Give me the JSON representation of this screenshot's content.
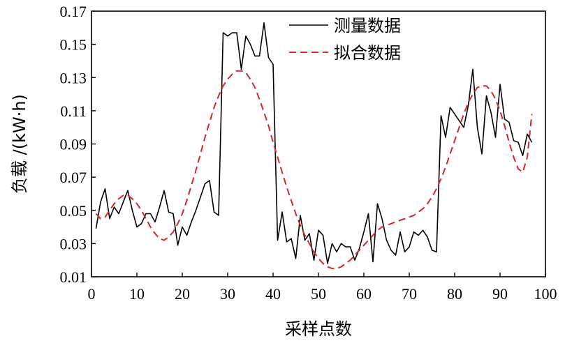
{
  "chart_data": {
    "type": "line",
    "xlabel": "采样点数",
    "ylabel": "负载 /(kW·h)",
    "xlim": [
      0,
      100
    ],
    "ylim": [
      0.01,
      0.17
    ],
    "xticks": [
      "0",
      "10",
      "20",
      "30",
      "40",
      "50",
      "60",
      "70",
      "80",
      "90",
      "100"
    ],
    "yticks": [
      "0.01",
      "0.03",
      "0.05",
      "0.07",
      "0.09",
      "0.11",
      "0.13",
      "0.15",
      "0.17"
    ],
    "grid": false,
    "legend_position": "top-right",
    "series": [
      {
        "name": "测量数据",
        "style": "solid",
        "color": "#000000",
        "points": [
          [
            1,
            0.039
          ],
          [
            2,
            0.055
          ],
          [
            3,
            0.063
          ],
          [
            4,
            0.045
          ],
          [
            5,
            0.052
          ],
          [
            6,
            0.048
          ],
          [
            7,
            0.055
          ],
          [
            8,
            0.062
          ],
          [
            9,
            0.05
          ],
          [
            10,
            0.04
          ],
          [
            11,
            0.042
          ],
          [
            12,
            0.048
          ],
          [
            13,
            0.048
          ],
          [
            14,
            0.043
          ],
          [
            15,
            0.052
          ],
          [
            16,
            0.062
          ],
          [
            17,
            0.049
          ],
          [
            18,
            0.048
          ],
          [
            19,
            0.029
          ],
          [
            20,
            0.04
          ],
          [
            21,
            0.035
          ],
          [
            22,
            0.043
          ],
          [
            23,
            0.05
          ],
          [
            24,
            0.058
          ],
          [
            25,
            0.066
          ],
          [
            26,
            0.068
          ],
          [
            27,
            0.049
          ],
          [
            28,
            0.047
          ],
          [
            29,
            0.157
          ],
          [
            30,
            0.155
          ],
          [
            31,
            0.157
          ],
          [
            32,
            0.157
          ],
          [
            33,
            0.135
          ],
          [
            34,
            0.155
          ],
          [
            35,
            0.15
          ],
          [
            36,
            0.143
          ],
          [
            37,
            0.143
          ],
          [
            38,
            0.163
          ],
          [
            39,
            0.142
          ],
          [
            40,
            0.138
          ],
          [
            41,
            0.032
          ],
          [
            42,
            0.049
          ],
          [
            43,
            0.031
          ],
          [
            44,
            0.033
          ],
          [
            45,
            0.021
          ],
          [
            46,
            0.047
          ],
          [
            47,
            0.032
          ],
          [
            48,
            0.036
          ],
          [
            49,
            0.02
          ],
          [
            50,
            0.038
          ],
          [
            51,
            0.035
          ],
          [
            52,
            0.018
          ],
          [
            53,
            0.03
          ],
          [
            54,
            0.025
          ],
          [
            55,
            0.03
          ],
          [
            56,
            0.028
          ],
          [
            57,
            0.028
          ],
          [
            58,
            0.02
          ],
          [
            59,
            0.027
          ],
          [
            60,
            0.037
          ],
          [
            61,
            0.048
          ],
          [
            62,
            0.019
          ],
          [
            63,
            0.054
          ],
          [
            64,
            0.045
          ],
          [
            65,
            0.032
          ],
          [
            66,
            0.026
          ],
          [
            67,
            0.023
          ],
          [
            68,
            0.037
          ],
          [
            69,
            0.025
          ],
          [
            70,
            0.028
          ],
          [
            71,
            0.037
          ],
          [
            72,
            0.035
          ],
          [
            73,
            0.038
          ],
          [
            74,
            0.034
          ],
          [
            75,
            0.026
          ],
          [
            76,
            0.025
          ],
          [
            77,
            0.107
          ],
          [
            78,
            0.094
          ],
          [
            79,
            0.112
          ],
          [
            80,
            0.108
          ],
          [
            81,
            0.104
          ],
          [
            82,
            0.1
          ],
          [
            83,
            0.113
          ],
          [
            84,
            0.135
          ],
          [
            85,
            0.1
          ],
          [
            86,
            0.084
          ],
          [
            87,
            0.119
          ],
          [
            88,
            0.109
          ],
          [
            89,
            0.094
          ],
          [
            90,
            0.126
          ],
          [
            91,
            0.105
          ],
          [
            92,
            0.103
          ],
          [
            93,
            0.092
          ],
          [
            94,
            0.091
          ],
          [
            95,
            0.083
          ],
          [
            96,
            0.096
          ],
          [
            97,
            0.091
          ]
        ]
      },
      {
        "name": "拟合数据",
        "style": "dashed",
        "color": "#d62728",
        "points": [
          [
            1,
            0.048
          ],
          [
            2,
            0.045
          ],
          [
            3,
            0.046
          ],
          [
            4,
            0.05
          ],
          [
            5,
            0.054
          ],
          [
            6,
            0.057
          ],
          [
            7,
            0.059
          ],
          [
            8,
            0.059
          ],
          [
            9,
            0.057
          ],
          [
            10,
            0.054
          ],
          [
            11,
            0.05
          ],
          [
            12,
            0.045
          ],
          [
            13,
            0.04
          ],
          [
            14,
            0.036
          ],
          [
            15,
            0.033
          ],
          [
            16,
            0.032
          ],
          [
            17,
            0.034
          ],
          [
            18,
            0.037
          ],
          [
            19,
            0.042
          ],
          [
            20,
            0.048
          ],
          [
            21,
            0.056
          ],
          [
            22,
            0.065
          ],
          [
            23,
            0.074
          ],
          [
            24,
            0.084
          ],
          [
            25,
            0.094
          ],
          [
            26,
            0.103
          ],
          [
            27,
            0.112
          ],
          [
            28,
            0.119
          ],
          [
            29,
            0.125
          ],
          [
            30,
            0.129
          ],
          [
            31,
            0.132
          ],
          [
            32,
            0.134
          ],
          [
            33,
            0.134
          ],
          [
            34,
            0.133
          ],
          [
            35,
            0.129
          ],
          [
            36,
            0.124
          ],
          [
            37,
            0.117
          ],
          [
            38,
            0.109
          ],
          [
            39,
            0.101
          ],
          [
            40,
            0.091
          ],
          [
            41,
            0.082
          ],
          [
            42,
            0.073
          ],
          [
            43,
            0.064
          ],
          [
            44,
            0.056
          ],
          [
            45,
            0.048
          ],
          [
            46,
            0.041
          ],
          [
            47,
            0.035
          ],
          [
            48,
            0.03
          ],
          [
            49,
            0.025
          ],
          [
            50,
            0.021
          ],
          [
            51,
            0.018
          ],
          [
            52,
            0.016
          ],
          [
            53,
            0.015
          ],
          [
            54,
            0.015
          ],
          [
            55,
            0.016
          ],
          [
            56,
            0.018
          ],
          [
            57,
            0.02
          ],
          [
            58,
            0.023
          ],
          [
            59,
            0.026
          ],
          [
            60,
            0.029
          ],
          [
            61,
            0.032
          ],
          [
            62,
            0.035
          ],
          [
            63,
            0.038
          ],
          [
            64,
            0.04
          ],
          [
            65,
            0.041
          ],
          [
            66,
            0.042
          ],
          [
            67,
            0.043
          ],
          [
            68,
            0.044
          ],
          [
            69,
            0.045
          ],
          [
            70,
            0.046
          ],
          [
            71,
            0.047
          ],
          [
            72,
            0.049
          ],
          [
            73,
            0.051
          ],
          [
            74,
            0.054
          ],
          [
            75,
            0.058
          ],
          [
            76,
            0.063
          ],
          [
            77,
            0.069
          ],
          [
            78,
            0.076
          ],
          [
            79,
            0.084
          ],
          [
            80,
            0.092
          ],
          [
            81,
            0.1
          ],
          [
            82,
            0.108
          ],
          [
            83,
            0.115
          ],
          [
            84,
            0.12
          ],
          [
            85,
            0.124
          ],
          [
            86,
            0.125
          ],
          [
            87,
            0.125
          ],
          [
            88,
            0.122
          ],
          [
            89,
            0.117
          ],
          [
            90,
            0.11
          ],
          [
            91,
            0.101
          ],
          [
            92,
            0.091
          ],
          [
            93,
            0.082
          ],
          [
            94,
            0.075
          ],
          [
            95,
            0.073
          ],
          [
            96,
            0.082
          ],
          [
            97,
            0.108
          ]
        ]
      }
    ]
  }
}
